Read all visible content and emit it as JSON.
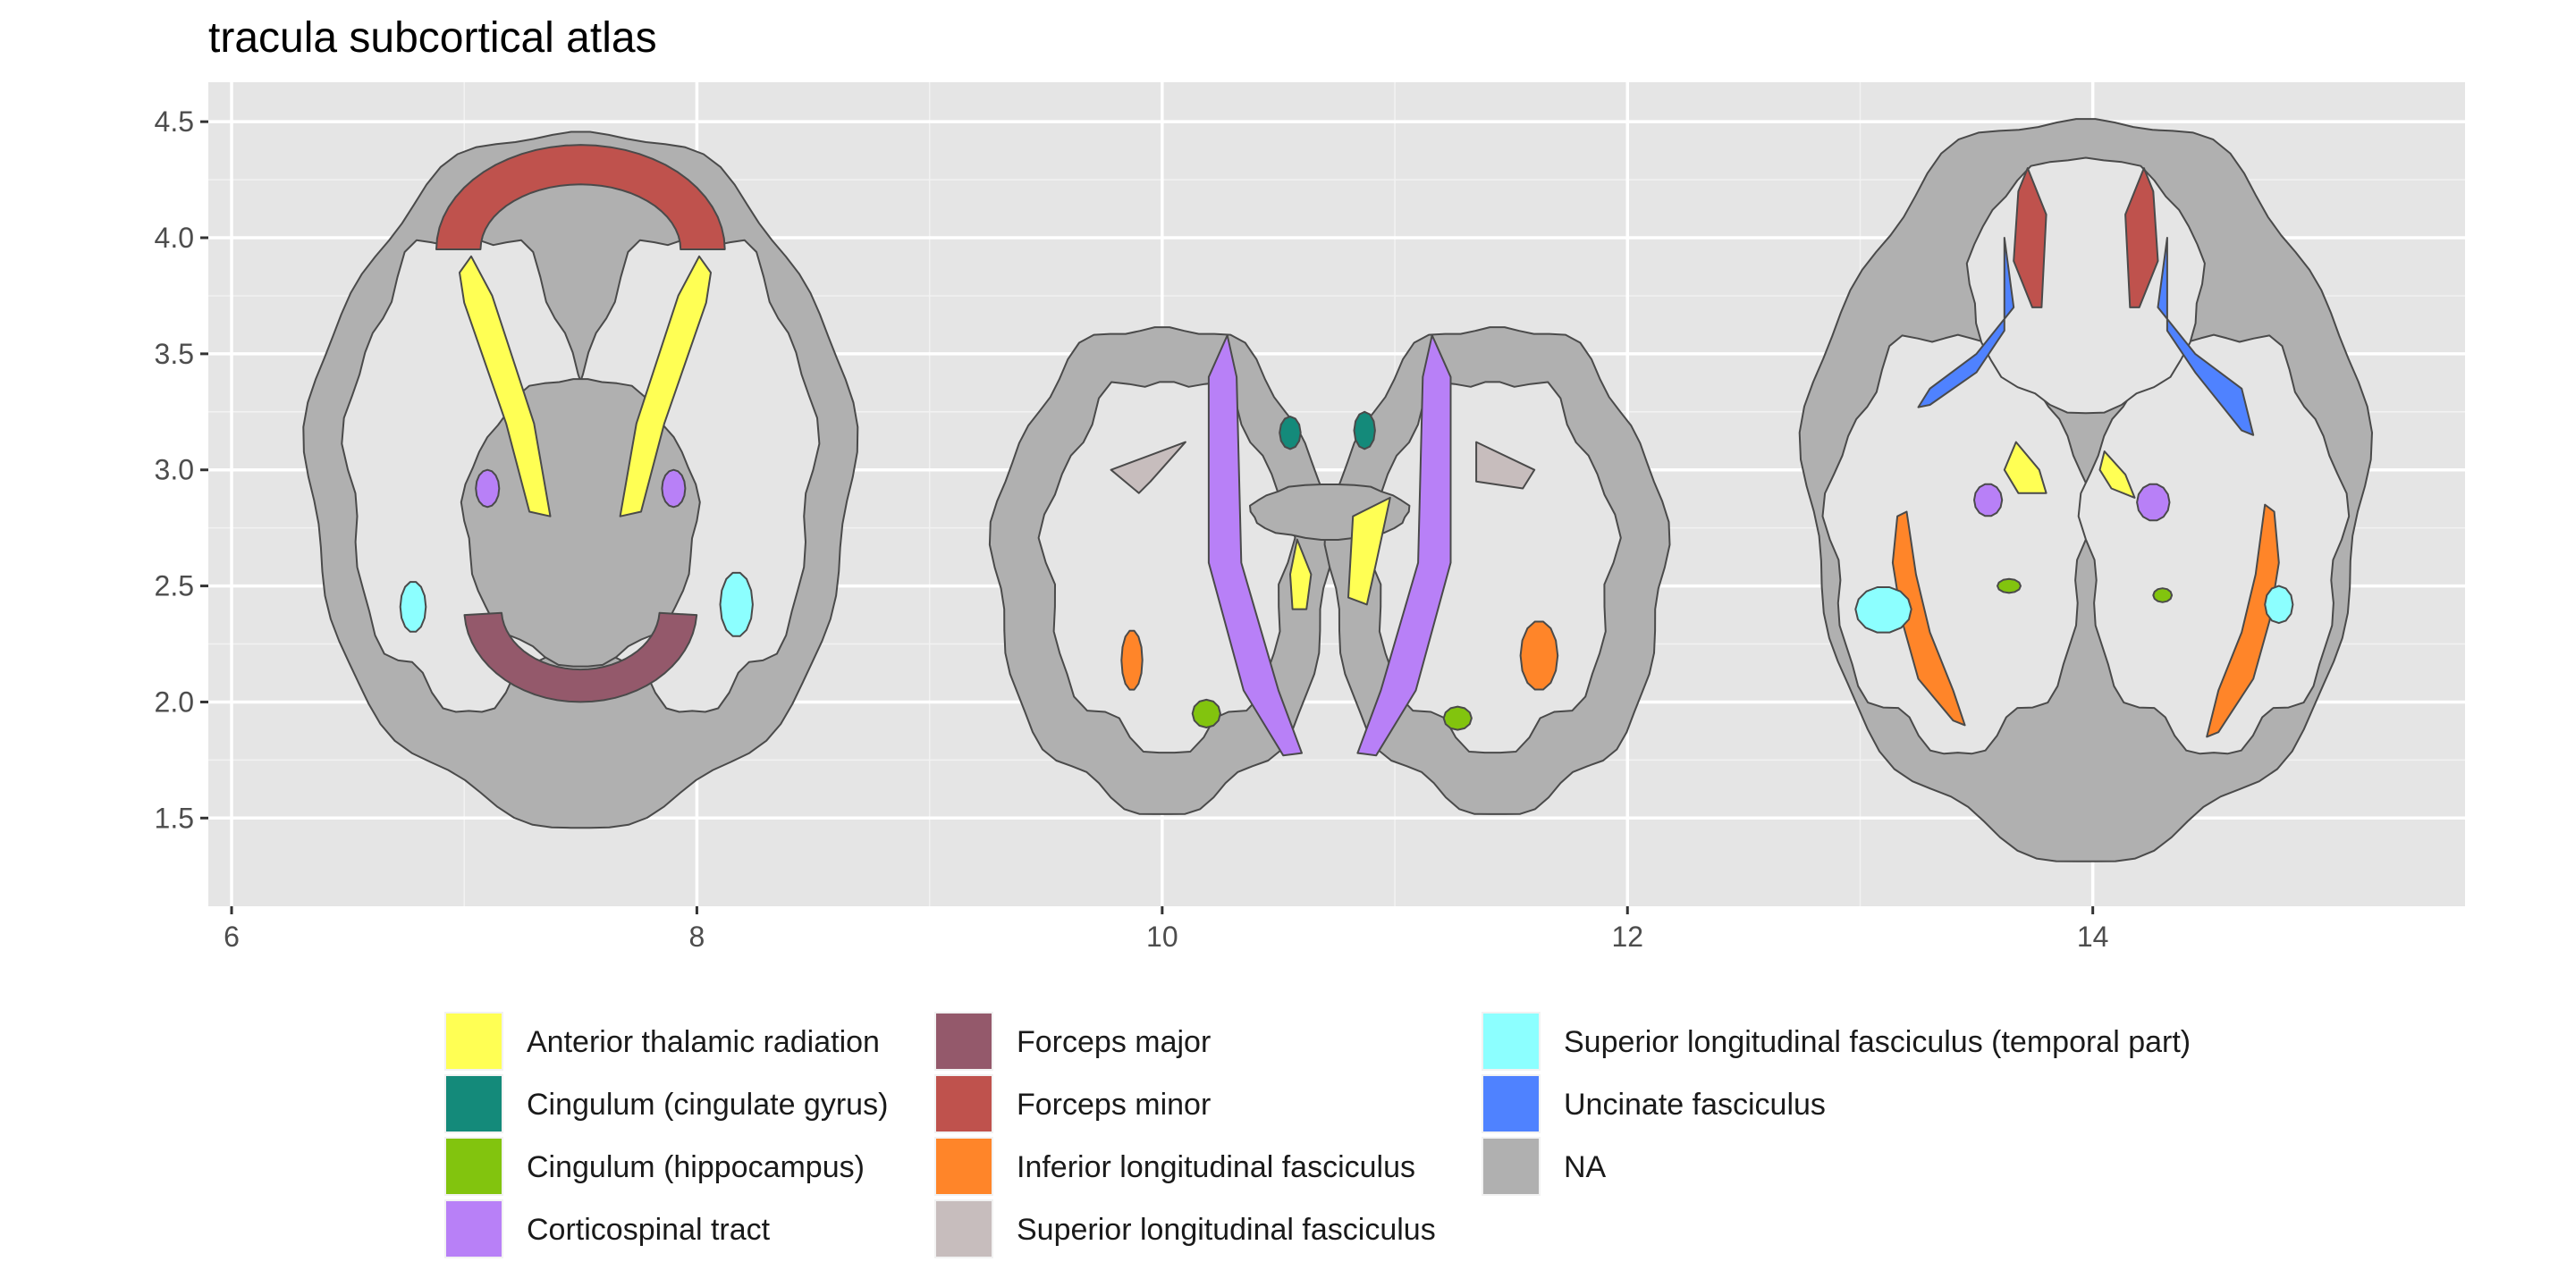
{
  "chart_data": {
    "type": "other",
    "title": "tracula subcortical atlas",
    "xlabel": "",
    "ylabel": "",
    "xlim": [
      5.9,
      15.6
    ],
    "ylim": [
      1.12,
      4.67
    ],
    "x_ticks": [
      6,
      8,
      10,
      12,
      14
    ],
    "y_ticks": [
      1.5,
      2.0,
      2.5,
      3.0,
      3.5,
      4.0,
      4.5
    ],
    "x_tick_labels": [
      "6",
      "8",
      "10",
      "12",
      "14"
    ],
    "y_tick_labels": [
      "1.5",
      "2.0",
      "2.5",
      "3.0",
      "3.5",
      "4.0",
      "4.5"
    ],
    "grid": true,
    "legend_position": "bottom",
    "panel_background": "#e5e5e5",
    "gridline_color": "#ffffff",
    "views": [
      "axial",
      "coronal",
      "axial"
    ],
    "legend": [
      {
        "label": "Anterior thalamic radiation",
        "color": "#ffff54"
      },
      {
        "label": "Cingulum (cingulate gyrus)",
        "color": "#148a7a"
      },
      {
        "label": "Cingulum (hippocampus)",
        "color": "#82c40e"
      },
      {
        "label": "Corticospinal tract",
        "color": "#b880f7"
      },
      {
        "label": "Forceps major",
        "color": "#94596b"
      },
      {
        "label": "Forceps minor",
        "color": "#bf524d"
      },
      {
        "label": "Inferior longitudinal fasciculus",
        "color": "#ff8529"
      },
      {
        "label": "Superior longitudinal fasciculus",
        "color": "#c7bdbd"
      },
      {
        "label": "Superior longitudinal fasciculus (temporal part)",
        "color": "#8cffff"
      },
      {
        "label": "Uncinate fasciculus",
        "color": "#4f82ff"
      },
      {
        "label": "NA",
        "color": "#b0b0b0"
      }
    ]
  }
}
